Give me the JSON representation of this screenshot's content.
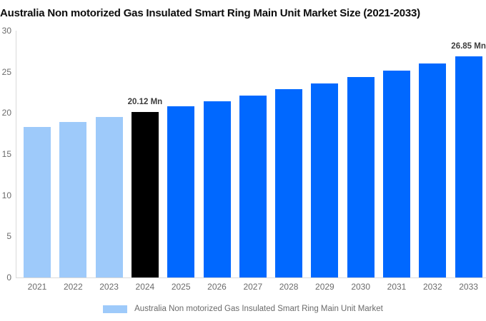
{
  "title": "Australia Non motorized Gas Insulated Smart Ring Main Unit Market Size (2021-2033)",
  "legend": {
    "label": "Australia Non motorized Gas Insulated Smart Ring Main Unit Market"
  },
  "chart_data": {
    "type": "bar",
    "title": "Australia Non motorized Gas Insulated Smart Ring Main Unit Market Size (2021-2033)",
    "categories": [
      "2021",
      "2022",
      "2023",
      "2024",
      "2025",
      "2026",
      "2027",
      "2028",
      "2029",
      "2030",
      "2031",
      "2032",
      "2033"
    ],
    "values": [
      18.28,
      18.87,
      19.49,
      20.12,
      20.78,
      21.45,
      22.15,
      22.87,
      23.62,
      24.39,
      25.18,
      26.0,
      26.85
    ],
    "unit": "Mn",
    "ylim": [
      0,
      30
    ],
    "y_ticks": [
      0,
      5,
      10,
      15,
      20,
      25,
      30
    ],
    "grid": false,
    "legend_position": "bottom",
    "bar_roles": [
      "historical",
      "historical",
      "historical",
      "base_year",
      "forecast",
      "forecast",
      "forecast",
      "forecast",
      "forecast",
      "forecast",
      "forecast",
      "forecast",
      "forecast"
    ],
    "colors": {
      "historical": "#9ECAFA",
      "base_year": "#000000",
      "forecast": "#0068FF",
      "axis": "#DADADA",
      "tick_text": "#6B6B6B",
      "annotation_text": "#3D3D3D"
    },
    "annotations": [
      {
        "category": "2024",
        "text": "20.12 Mn"
      },
      {
        "category": "2033",
        "text": "26.85 Mn"
      }
    ]
  }
}
